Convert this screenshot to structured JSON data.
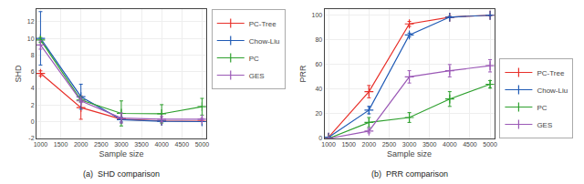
{
  "chart_data": [
    {
      "type": "line",
      "title": "(a)  SHD comparison",
      "xlabel": "Sample size",
      "ylabel": "SHD",
      "x": [
        1000,
        2000,
        3000,
        4000,
        5000
      ],
      "series": [
        {
          "name": "PC-Tree",
          "color": "#e8302a",
          "values": [
            5.8,
            1.7,
            0.3,
            0.1,
            0.05
          ],
          "errors": [
            0.3,
            1.4,
            0,
            0,
            0
          ]
        },
        {
          "name": "Chow-Liu",
          "color": "#1f5ab5",
          "values": [
            10.0,
            3.0,
            0.25,
            0.05,
            0.02
          ],
          "errors": [
            3.2,
            1.5,
            0.28,
            0.05,
            0
          ]
        },
        {
          "name": "PC",
          "color": "#2ea02e",
          "values": [
            9.8,
            2.6,
            1.0,
            0.95,
            1.8
          ],
          "errors": [
            0.3,
            0.2,
            1.5,
            1.1,
            1.0
          ]
        },
        {
          "name": "GES",
          "color": "#9b59b6",
          "values": [
            9.2,
            2.5,
            0.45,
            0.3,
            0.3
          ],
          "errors": [
            0.5,
            0.2,
            0.6,
            0.3,
            0.1
          ]
        }
      ],
      "xlim": [
        900,
        5100
      ],
      "xticks": [
        1000,
        1500,
        2000,
        2500,
        3000,
        3500,
        4000,
        4500,
        5000
      ],
      "ylim": [
        -2,
        13.5
      ],
      "yticks": [
        -2,
        0,
        2,
        4,
        6,
        8,
        10,
        12
      ],
      "grid": true,
      "legend": "upper right",
      "marker": "plus"
    },
    {
      "type": "line",
      "title": "(b)  PRR comparison",
      "xlabel": "Sample size",
      "ylabel": "PRR",
      "x": [
        1000,
        2000,
        3000,
        4000,
        5000
      ],
      "series": [
        {
          "name": "PC-Tree",
          "color": "#e8302a",
          "values": [
            1.0,
            38.0,
            93.0,
            98.5,
            100.0
          ],
          "errors": [
            0,
            5.0,
            2.0,
            0.5,
            0
          ]
        },
        {
          "name": "Chow-Liu",
          "color": "#1f5ab5",
          "values": [
            1.0,
            23.0,
            84.0,
            98.5,
            100.0
          ],
          "errors": [
            0,
            3.0,
            1.5,
            0.5,
            0
          ]
        },
        {
          "name": "PC",
          "color": "#2ea02e",
          "values": [
            0.0,
            13.0,
            17.0,
            32.0,
            44.0
          ],
          "errors": [
            0,
            4.0,
            4.0,
            6.0,
            3.0
          ]
        },
        {
          "name": "GES",
          "color": "#9b59b6",
          "values": [
            0.0,
            6.0,
            50.0,
            55.0,
            59.0
          ],
          "errors": [
            0,
            1.5,
            5.0,
            5.0,
            5.0
          ]
        }
      ],
      "xlim": [
        900,
        5100
      ],
      "xticks": [
        1000,
        1500,
        2000,
        2500,
        3000,
        3500,
        4000,
        4500,
        5000
      ],
      "ylim": [
        0,
        105
      ],
      "yticks": [
        0,
        20,
        40,
        60,
        80,
        100
      ],
      "grid": true,
      "legend": "lower right",
      "marker": "plus"
    }
  ]
}
